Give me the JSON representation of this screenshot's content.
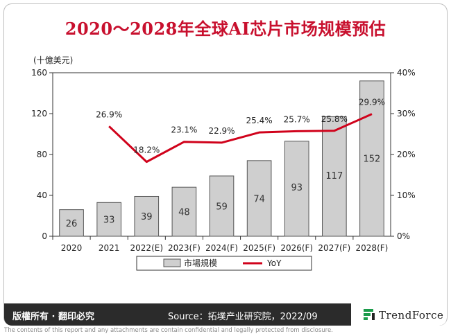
{
  "title": "2020～2028年全球AI芯片市场规模预估",
  "footer": {
    "rights": "版權所有 · 翻印必究",
    "source": "Source：拓墣产业研究院，2022/09",
    "brand": "TrendForce",
    "disclaimer": "The contents of this report and any attachments are contain confidential and legally protected from disclosure."
  },
  "colors": {
    "accent": "#c8102e",
    "bar_fill": "#cfcfcf",
    "bar_stroke": "#555555",
    "line": "#d0021b"
  },
  "chart_data": {
    "type": "bar",
    "categories": [
      "2020",
      "2021",
      "2022(E)",
      "2023(F)",
      "2024(F)",
      "2025(F)",
      "2026(F)",
      "2027(F)",
      "2028(F)"
    ],
    "series": [
      {
        "name": "市場規模",
        "type": "bar",
        "axis": "left",
        "values": [
          26,
          33,
          39,
          48,
          59,
          74,
          93,
          117,
          152
        ],
        "labels": [
          "26",
          "33",
          "39",
          "48",
          "59",
          "74",
          "93",
          "117",
          "152"
        ]
      },
      {
        "name": "YoY",
        "type": "line",
        "axis": "right",
        "values": [
          null,
          26.9,
          18.2,
          23.1,
          22.9,
          25.4,
          25.7,
          25.8,
          29.9
        ],
        "labels": [
          "",
          "26.9%",
          "18.2%",
          "23.1%",
          "22.9%",
          "25.4%",
          "25.7%",
          "25.8%",
          "29.9%"
        ]
      }
    ],
    "ylabel": "(十億美元)",
    "ylim": [
      0,
      160
    ],
    "yticks": [
      "0",
      "40",
      "80",
      "120",
      "160"
    ],
    "y2lim": [
      0,
      40
    ],
    "y2ticks": [
      "0%",
      "10%",
      "20%",
      "30%",
      "40%"
    ],
    "legend": {
      "placement": "bottom"
    },
    "grid": false
  }
}
